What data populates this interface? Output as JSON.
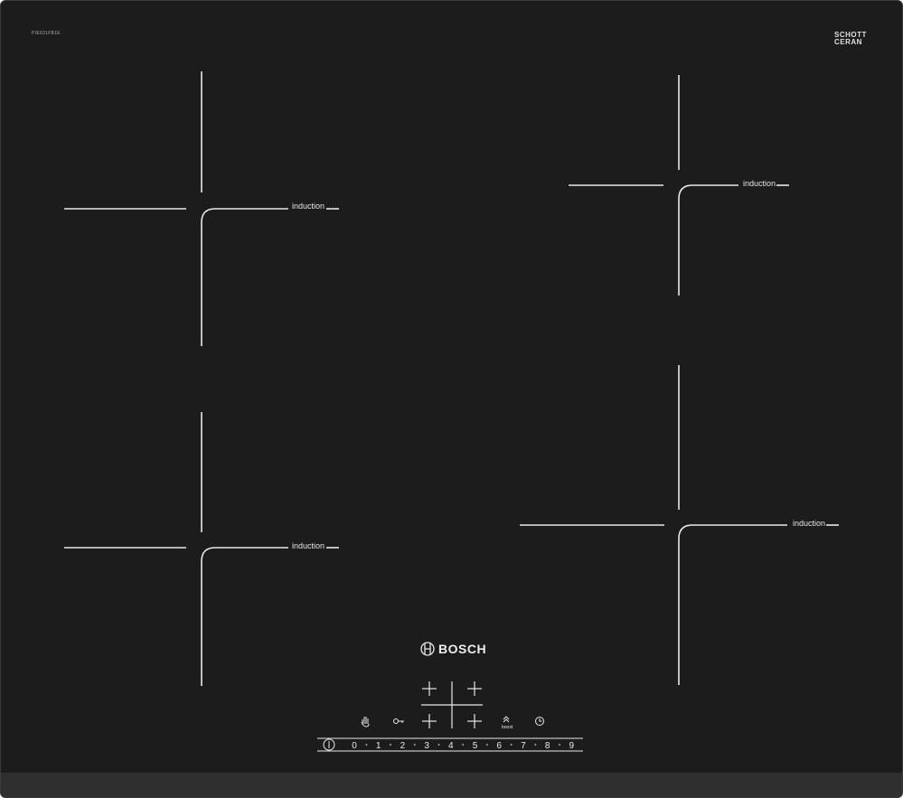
{
  "product": {
    "model_code": "PIE631FB1E",
    "glass_brand": "SCHOTT CERAN",
    "brand": "BOSCH"
  },
  "zones": [
    {
      "label": "induction"
    },
    {
      "label": "induction"
    },
    {
      "label": "induction"
    },
    {
      "label": "induction"
    }
  ],
  "controls": {
    "icons": [
      "child-lock-hand-icon",
      "key-lock-icon",
      "boost-icon",
      "timer-icon"
    ],
    "boost_label": "boost",
    "power_levels": [
      "0",
      "1",
      "2",
      "3",
      "4",
      "5",
      "6",
      "7",
      "8",
      "9"
    ]
  },
  "colors": {
    "glass": "#1c1c1c",
    "markings": "#e8e8e8",
    "frame": "#2f2f2f"
  }
}
